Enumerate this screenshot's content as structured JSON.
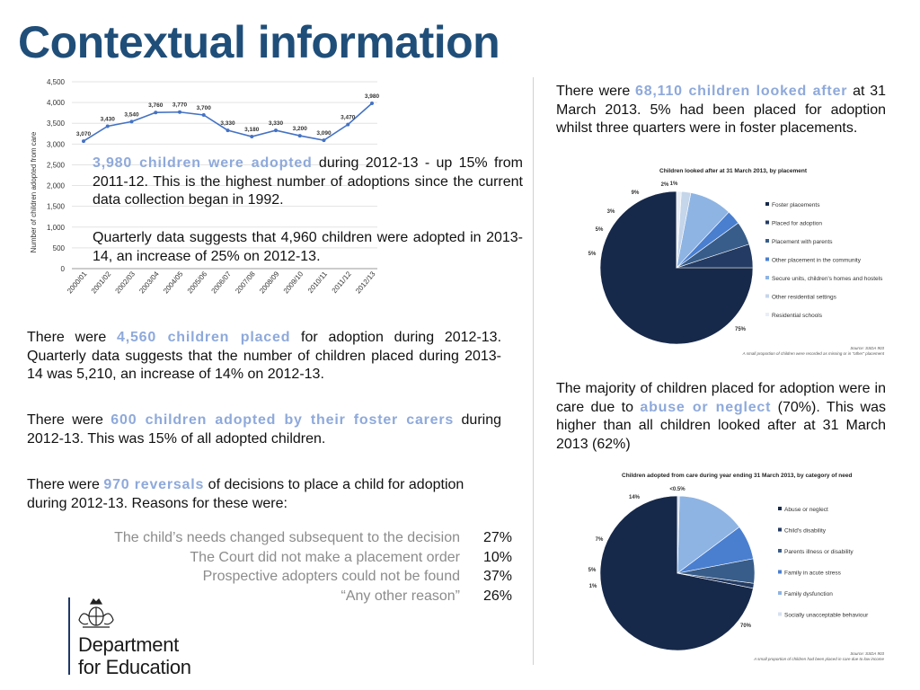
{
  "title": "Contextual information",
  "highlight_color": "#8ea9db",
  "title_color": "#1f4e79",
  "text_blocks": {
    "adopted_2012_13": {
      "highlight": "3,980 children were adopted",
      "rest": " during 2012-13 - up 15% from 2011-12. This is the highest number of adoptions since the current data collection began in 1992."
    },
    "quarterly_adopted": "Quarterly data suggests that 4,960 children were adopted in 2013-14, an increase of 25% on 2012-13.",
    "placed": {
      "before": "There were ",
      "highlight": "4,560 children placed",
      "after": " for adoption during 2012-13. Quarterly data suggests that the number of children placed during 2013-14 was 5,210, an increase of 14% on 2012-13."
    },
    "foster_carers": {
      "before": "There were ",
      "highlight": "600 children adopted by their foster carers",
      "after": " during 2012-13. This was 15% of all adopted children."
    },
    "reversals": {
      "before": "There were ",
      "highlight": "970 reversals",
      "after": " of decisions to place a child for adoption during 2012-13. Reasons for these were:"
    },
    "looked_after": {
      "before": "There were ",
      "highlight": "68,110 children looked after",
      "after": " at 31 March 2013. 5% had been placed for adoption whilst three quarters were in foster placements."
    },
    "abuse": {
      "before": "The majority of children placed for adoption were in care due to ",
      "highlight": "abuse or neglect",
      "after": " (70%). This was higher than all children looked after at 31 March 2013 (62%)"
    }
  },
  "reasons": [
    {
      "text": "The child’s needs changed subsequent to the decision",
      "pct": "27%"
    },
    {
      "text": "The Court did not make a placement order",
      "pct": "10%"
    },
    {
      "text": "Prospective adopters could not be found",
      "pct": "37%"
    },
    {
      "text": "“Any other reason”",
      "pct": "26%"
    }
  ],
  "logo": {
    "line1": "Department",
    "line2": "for Education"
  },
  "chart_data": [
    {
      "type": "line",
      "ylabel": "Number of children adopted from care",
      "ylim": [
        0,
        4500
      ],
      "yticks": [
        "0",
        "500",
        "1,000",
        "1,500",
        "2,000",
        "2,500",
        "3,000",
        "3,500",
        "4,000",
        "4,500"
      ],
      "grid": true,
      "categories": [
        "2000/01",
        "2001/02",
        "2002/03",
        "2003/04",
        "2004/05",
        "2005/06",
        "2006/07",
        "2007/08",
        "2008/09",
        "2009/10",
        "2010/11",
        "2011/12",
        "2012/13"
      ],
      "values": [
        3070,
        3430,
        3540,
        3760,
        3770,
        3700,
        3330,
        3180,
        3330,
        3200,
        3090,
        3470,
        3980
      ],
      "value_labels": [
        "3,070",
        "3,430",
        "3,540",
        "3,760",
        "3,770",
        "3,700",
        "3,330",
        "3,180",
        "3,330",
        "3,200",
        "3,090",
        "3,470",
        "3,980"
      ],
      "color": "#4472c4"
    },
    {
      "type": "pie",
      "title": "Children looked after at 31 March 2013, by placement",
      "categories": [
        "Foster placements",
        "Placed for adoption",
        "Placement with parents",
        "Other placement in the community",
        "Secure units, children's homes and hostels",
        "Other residential settings",
        "Residential schools"
      ],
      "values": [
        75,
        5,
        5,
        3,
        9,
        2,
        1
      ],
      "labels": [
        "75%",
        "5%",
        "5%",
        "3%",
        "9%",
        "2%",
        "1%"
      ],
      "colors": [
        "#17294a",
        "#243b63",
        "#385d8a",
        "#4a7fd0",
        "#8eb4e3",
        "#c5d5ea",
        "#e9eef6"
      ],
      "legend_position": "right",
      "source": "Source: SSDA 903",
      "note": "A small proportion of children were recorded as missing or in \"other\" placement"
    },
    {
      "type": "pie",
      "title": "Children adopted from care during year ending 31 March 2013, by category of need",
      "categories": [
        "Abuse or neglect",
        "Child's disability",
        "Parents illness or disability",
        "Family in acute stress",
        "Family dysfunction",
        "Socially unacceptable behaviour"
      ],
      "values": [
        70,
        1,
        5,
        7,
        14,
        0.4
      ],
      "labels": [
        "70%",
        "1%",
        "5%",
        "7%",
        "14%",
        "<0.5%"
      ],
      "colors": [
        "#17294a",
        "#243b63",
        "#385d8a",
        "#4a7fd0",
        "#8eb4e3",
        "#d6e1f0"
      ],
      "legend_position": "right",
      "source": "Source: SSDA 903",
      "note": "A small proportion of children had been placed in care due to low income"
    }
  ]
}
